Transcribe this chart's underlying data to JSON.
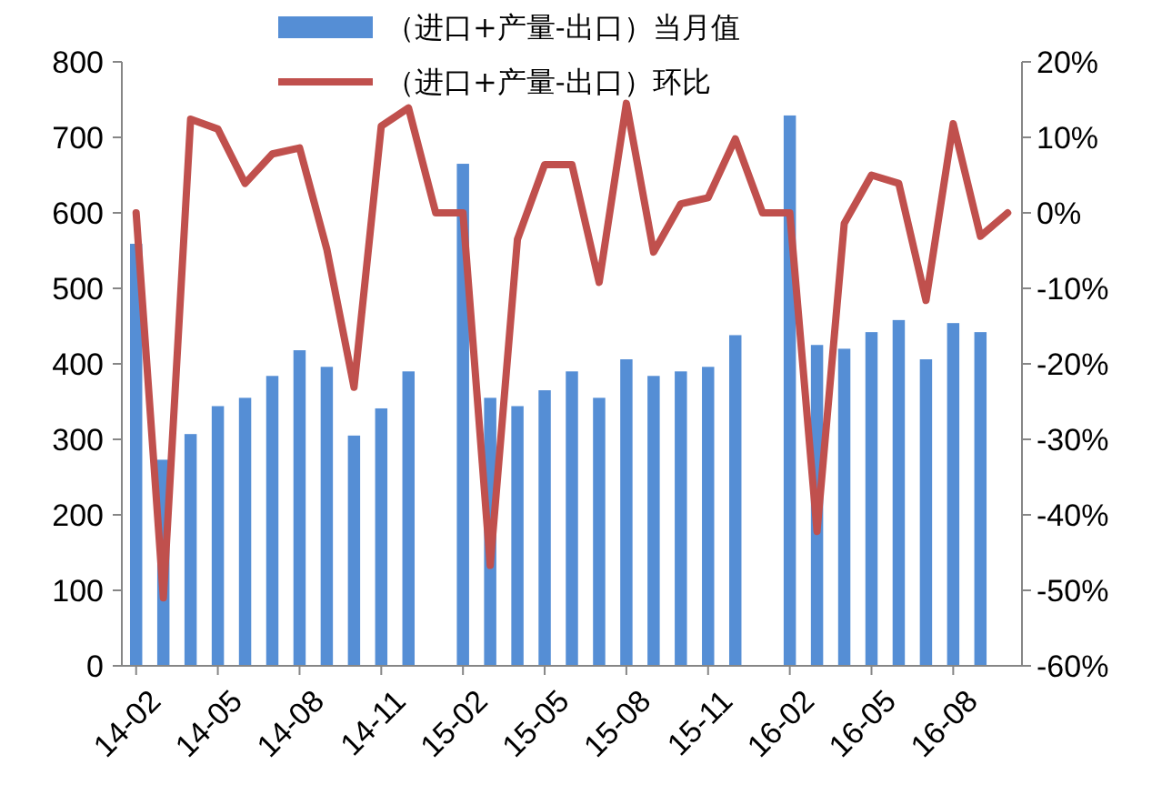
{
  "chart_data": {
    "type": "bar",
    "categories": [
      "14-02",
      null,
      null,
      "14-05",
      null,
      null,
      "14-08",
      null,
      null,
      "14-11",
      null,
      null,
      "15-02",
      null,
      null,
      "15-05",
      null,
      null,
      "15-08",
      null,
      null,
      "15-11",
      null,
      null,
      "16-02",
      null,
      null,
      "16-05",
      null,
      null,
      "16-08",
      null,
      null
    ],
    "series": [
      {
        "name": "（进口+产量-出口）当月值",
        "color": "#558ed5",
        "values": [
          559,
          273,
          307,
          344,
          355,
          384,
          418,
          396,
          305,
          341,
          390,
          null,
          665,
          355,
          344,
          365,
          390,
          355,
          406,
          384,
          390,
          396,
          438,
          null,
          729,
          425,
          420,
          442,
          458,
          406,
          454,
          442,
          null
        ]
      },
      {
        "name": "（进口+产量-出口）环比",
        "type": "line",
        "axis": "y2",
        "color": "#c0504d",
        "values": [
          0,
          -51,
          12.4,
          11.1,
          3.9,
          7.8,
          8.6,
          -4.8,
          -23.1,
          11.5,
          13.9,
          0,
          0,
          -46.7,
          -3.5,
          6.4,
          6.4,
          -9.2,
          14.5,
          -5.2,
          1.2,
          2,
          9.8,
          0,
          0,
          -42.2,
          -1.4,
          5,
          3.9,
          -11.6,
          11.8,
          -3.1,
          0
        ]
      }
    ],
    "ylim": [
      0,
      800
    ],
    "yticks": [
      0,
      100,
      200,
      300,
      400,
      500,
      600,
      700,
      800
    ],
    "y2lim": [
      -60,
      20
    ],
    "y2ticks": [
      {
        "value": -60,
        "label": "-60%"
      },
      {
        "value": -50,
        "label": "-50%"
      },
      {
        "value": -40,
        "label": "-40%"
      },
      {
        "value": -30,
        "label": "-30%"
      },
      {
        "value": -20,
        "label": "-20%"
      },
      {
        "value": -10,
        "label": "-10%"
      },
      {
        "value": 0,
        "label": "0%"
      },
      {
        "value": 10,
        "label": "10%"
      },
      {
        "value": 20,
        "label": "20%"
      }
    ],
    "legend": "top",
    "marker": "none"
  }
}
